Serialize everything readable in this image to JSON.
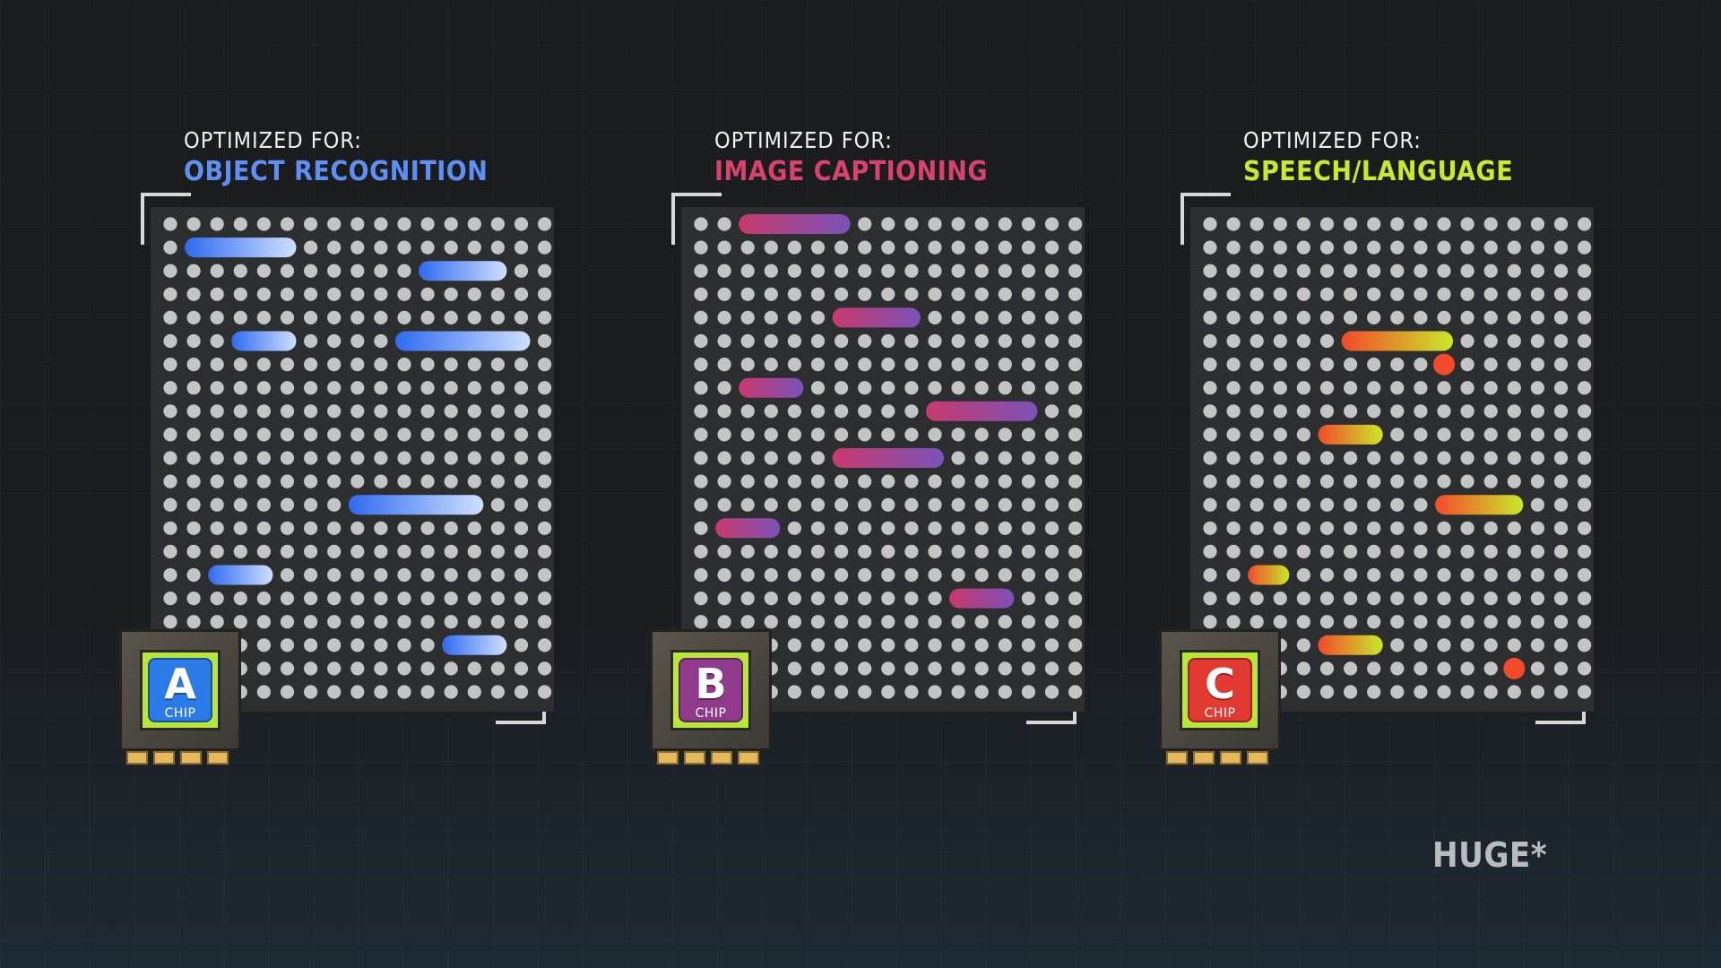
{
  "panels": [
    {
      "kicker": "OPTIMIZED FOR:",
      "focus": "OBJECT RECOGNITION",
      "focus_color": "#5f8ff4",
      "bar_gradient": [
        "#2f6bf0",
        "#cfe0ff"
      ],
      "chip_letter": "A",
      "chip_word": "CHIP",
      "chip_color": "#2a7be8",
      "bars": [
        {
          "row": 1,
          "col_start": 1,
          "col_end": 5
        },
        {
          "row": 2,
          "col_start": 11,
          "col_end": 14
        },
        {
          "row": 5,
          "col_start": 3,
          "col_end": 5
        },
        {
          "row": 5,
          "col_start": 10,
          "col_end": 15
        },
        {
          "row": 12,
          "col_start": 8,
          "col_end": 13
        },
        {
          "row": 15,
          "col_start": 2,
          "col_end": 4
        },
        {
          "row": 18,
          "col_start": 12,
          "col_end": 14
        }
      ],
      "dots": []
    },
    {
      "kicker": "OPTIMIZED FOR:",
      "focus": "IMAGE CAPTIONING",
      "focus_color": "#d9426f",
      "bar_gradient": [
        "#c83a6c",
        "#7a52b8"
      ],
      "chip_letter": "B",
      "chip_word": "CHIP",
      "chip_color": "#8f3a8a",
      "bars": [
        {
          "row": 0,
          "col_start": 2,
          "col_end": 6
        },
        {
          "row": 4,
          "col_start": 6,
          "col_end": 9
        },
        {
          "row": 7,
          "col_start": 2,
          "col_end": 4
        },
        {
          "row": 8,
          "col_start": 10,
          "col_end": 14
        },
        {
          "row": 10,
          "col_start": 6,
          "col_end": 10
        },
        {
          "row": 13,
          "col_start": 1,
          "col_end": 3
        },
        {
          "row": 16,
          "col_start": 11,
          "col_end": 13
        }
      ],
      "dots": []
    },
    {
      "kicker": "OPTIMIZED FOR:",
      "focus": "SPEECH/LANGUAGE",
      "focus_color": "#c8ea2e",
      "bar_gradient": [
        "#f24a2a",
        "#c8e82a"
      ],
      "chip_letter": "C",
      "chip_word": "CHIP",
      "chip_color": "#e23a32",
      "bars": [
        {
          "row": 5,
          "col_start": 6,
          "col_end": 10
        },
        {
          "row": 9,
          "col_start": 5,
          "col_end": 7
        },
        {
          "row": 12,
          "col_start": 10,
          "col_end": 13
        },
        {
          "row": 15,
          "col_start": 2,
          "col_end": 3
        },
        {
          "row": 18,
          "col_start": 5,
          "col_end": 7
        }
      ],
      "dots": [
        {
          "row": 6,
          "col": 10
        },
        {
          "row": 19,
          "col": 13
        }
      ]
    }
  ],
  "logo": "HUGE*"
}
